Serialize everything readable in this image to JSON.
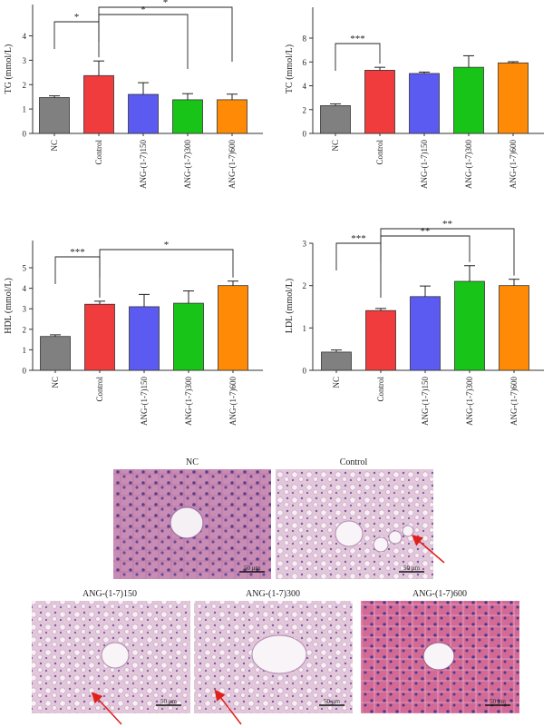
{
  "chart_data": [
    {
      "type": "bar",
      "ylabel": "TG (mmol/L)",
      "ylim": [
        0,
        4
      ],
      "yticks": [
        0,
        1,
        2,
        3,
        4
      ],
      "categories": [
        "NC",
        "Control",
        "ANG-(1-7)150",
        "ANG-(1-7)300",
        "ANG-(1-7)600"
      ],
      "values": [
        1.47,
        2.37,
        1.6,
        1.38,
        1.38
      ],
      "errors": [
        0.07,
        0.6,
        0.48,
        0.25,
        0.23
      ],
      "colors": [
        "#808080",
        "#f03c3c",
        "#5b5bf2",
        "#19c419",
        "#ff8a05"
      ],
      "significance": [
        {
          "from": 0,
          "to": 1,
          "label": "*"
        },
        {
          "from": 1,
          "to": 3,
          "label": "*"
        },
        {
          "from": 1,
          "to": 4,
          "label": "*"
        }
      ]
    },
    {
      "type": "bar",
      "ylabel": "TC (mmol/L)",
      "ylim": [
        0,
        8
      ],
      "yticks": [
        0,
        2,
        4,
        6,
        8
      ],
      "categories": [
        "NC",
        "Control",
        "ANG-(1-7)150",
        "ANG-(1-7)300",
        "ANG-(1-7)600"
      ],
      "values": [
        2.33,
        5.3,
        5.03,
        5.55,
        5.92
      ],
      "errors": [
        0.15,
        0.25,
        0.12,
        0.97,
        0.1
      ],
      "colors": [
        "#808080",
        "#f03c3c",
        "#5b5bf2",
        "#19c419",
        "#ff8a05"
      ],
      "significance": [
        {
          "from": 0,
          "to": 1,
          "label": "***"
        }
      ]
    },
    {
      "type": "bar",
      "ylabel": "HDL (mmol/L)",
      "ylim": [
        0,
        5
      ],
      "yticks": [
        0,
        1,
        2,
        3,
        4,
        5
      ],
      "categories": [
        "NC",
        "Control",
        "ANG-(1-7)150",
        "ANG-(1-7)300",
        "ANG-(1-7)600"
      ],
      "values": [
        1.65,
        3.22,
        3.1,
        3.27,
        4.13
      ],
      "errors": [
        0.08,
        0.15,
        0.6,
        0.6,
        0.22
      ],
      "colors": [
        "#808080",
        "#f03c3c",
        "#5b5bf2",
        "#19c419",
        "#ff8a05"
      ],
      "significance": [
        {
          "from": 0,
          "to": 1,
          "label": "***"
        },
        {
          "from": 1,
          "to": 4,
          "label": "*"
        }
      ]
    },
    {
      "type": "bar",
      "ylabel": "LDL (mmol/L)",
      "ylim": [
        0,
        3
      ],
      "yticks": [
        0,
        1,
        2,
        3
      ],
      "categories": [
        "NC",
        "Control",
        "ANG-(1-7)150",
        "ANG-(1-7)300",
        "ANG-(1-7)600"
      ],
      "values": [
        0.43,
        1.41,
        1.74,
        2.1,
        2.0
      ],
      "errors": [
        0.05,
        0.05,
        0.25,
        0.37,
        0.15
      ],
      "colors": [
        "#808080",
        "#f03c3c",
        "#5b5bf2",
        "#19c419",
        "#ff8a05"
      ],
      "significance": [
        {
          "from": 0,
          "to": 1,
          "label": "***"
        },
        {
          "from": 1,
          "to": 3,
          "label": "**"
        },
        {
          "from": 1,
          "to": 4,
          "label": "**"
        }
      ]
    }
  ],
  "histology": {
    "panels": [
      {
        "title": "NC",
        "scale_bar": "50 μm",
        "arrow": false
      },
      {
        "title": "Control",
        "scale_bar": "50 μm",
        "arrow": true
      },
      {
        "title": "ANG-(1-7)150",
        "scale_bar": "50 μm",
        "arrow": true
      },
      {
        "title": "ANG-(1-7)300",
        "scale_bar": "50 μm",
        "arrow": true
      },
      {
        "title": "ANG-(1-7)600",
        "scale_bar": "50 μm",
        "arrow": false
      }
    ]
  }
}
